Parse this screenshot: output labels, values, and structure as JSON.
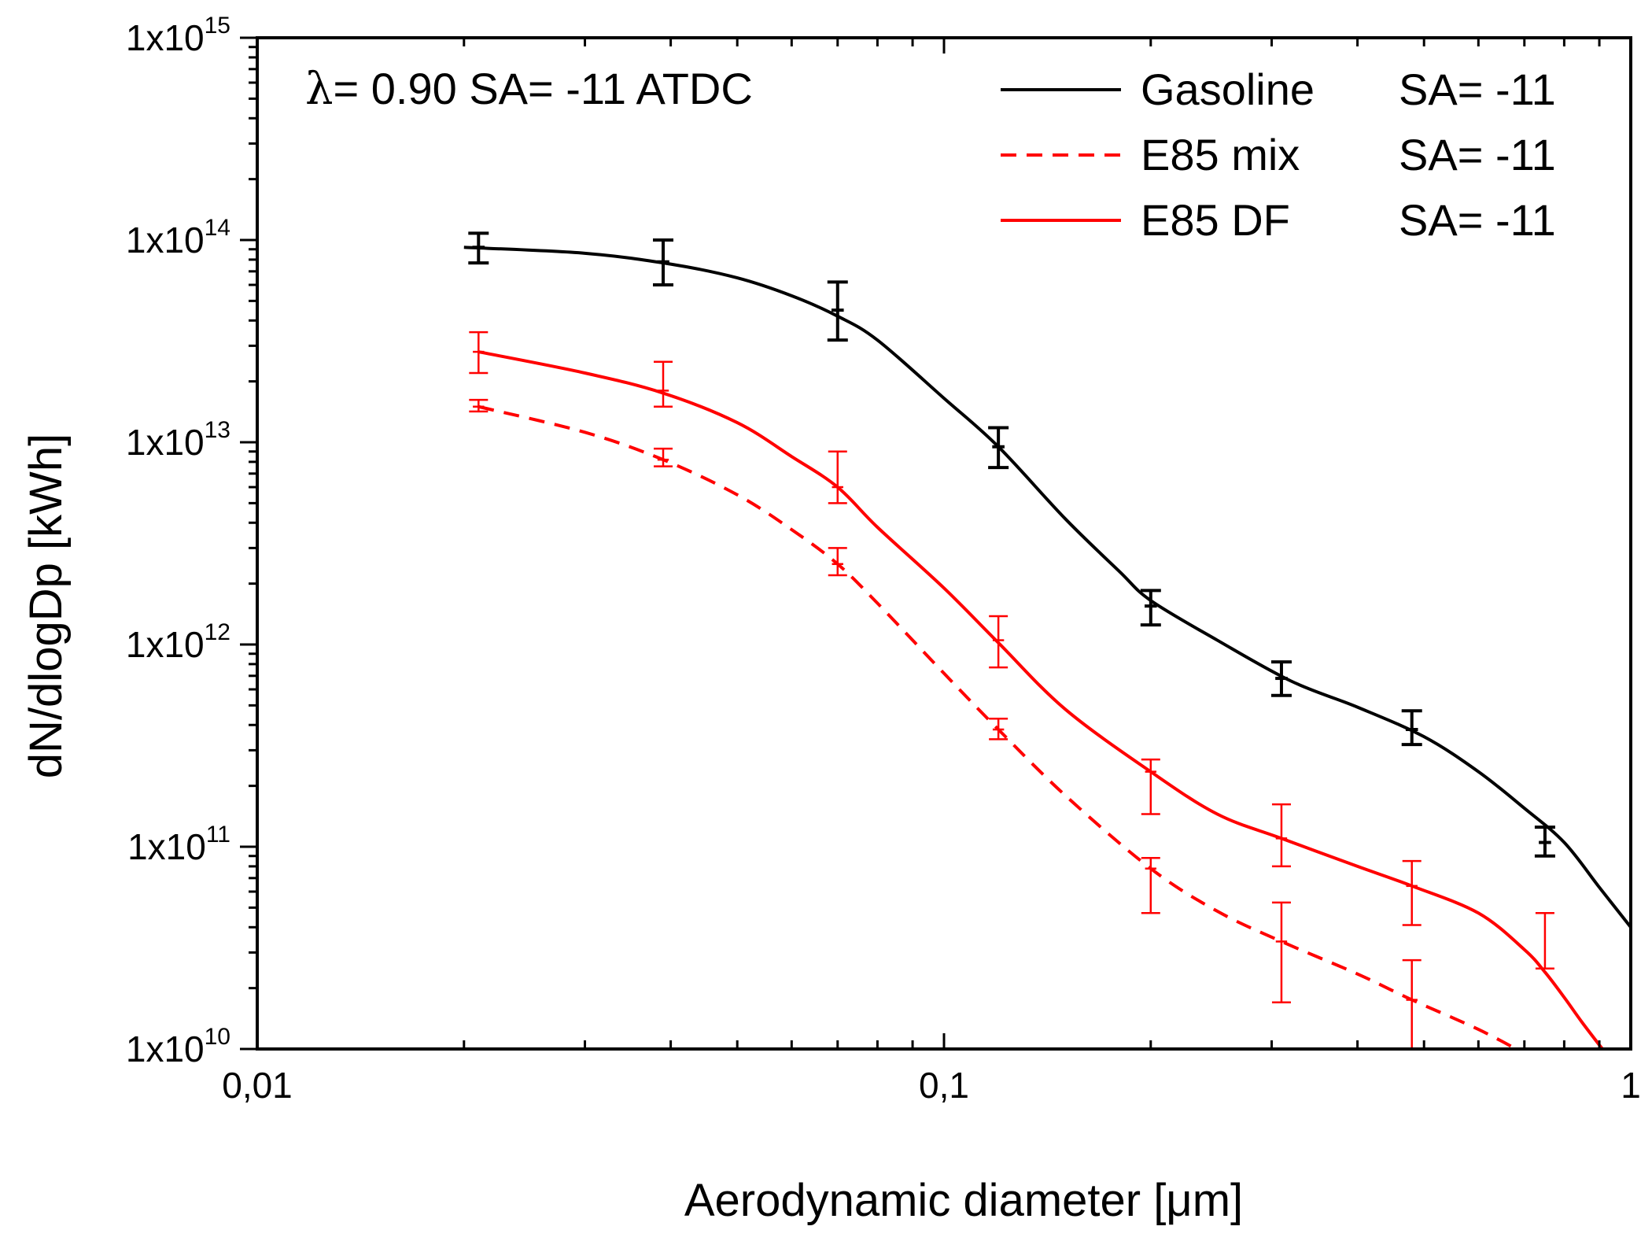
{
  "chart_data": {
    "type": "line",
    "title": "",
    "annotation": {
      "lambda_symbol": "λ",
      "text": "= 0.90 SA= -11 ATDC"
    },
    "xlabel": "Aerodynamic diameter [μm]",
    "ylabel": "dN/dlogDp [kWh]",
    "x_scale": "log",
    "y_scale": "log",
    "xlim": [
      0.01,
      1
    ],
    "ylim": [
      10000000000.0,
      1000000000000000.0
    ],
    "x_ticks": [
      {
        "value": 0.01,
        "label": "0,01"
      },
      {
        "value": 0.1,
        "label": "0,1"
      },
      {
        "value": 1,
        "label": "1"
      }
    ],
    "y_ticks": [
      {
        "value": 10000000000.0,
        "base": "1x10",
        "exp": "10"
      },
      {
        "value": 100000000000.0,
        "base": "1x10",
        "exp": "11"
      },
      {
        "value": 1000000000000.0,
        "base": "1x10",
        "exp": "12"
      },
      {
        "value": 10000000000000.0,
        "base": "1x10",
        "exp": "13"
      },
      {
        "value": 100000000000000.0,
        "base": "1x10",
        "exp": "14"
      },
      {
        "value": 1000000000000000.0,
        "base": "1x10",
        "exp": "15"
      }
    ],
    "legend_position": "top-right",
    "series": [
      {
        "name": "Gasoline",
        "legend_label": "Gasoline",
        "legend_sa": "SA= -11",
        "color": "#000000",
        "dash": "solid",
        "curve": {
          "x": [
            0.02,
            0.03,
            0.04,
            0.05,
            0.06,
            0.07,
            0.08,
            0.1,
            0.12,
            0.15,
            0.18,
            0.2,
            0.25,
            0.32,
            0.4,
            0.5,
            0.6,
            0.7,
            0.8,
            0.9,
            1.0
          ],
          "y": [
            92000000000000.0,
            86000000000000.0,
            76000000000000.0,
            65000000000000.0,
            53000000000000.0,
            42000000000000.0,
            32000000000000.0,
            16500000000000.0,
            9500000000000.0,
            4200000000000.0,
            2300000000000.0,
            1650000000000.0,
            1050000000000.0,
            660000000000.0,
            490000000000.0,
            350000000000.0,
            235000000000.0,
            155000000000.0,
            105000000000.0,
            63000000000.0,
            40000000000.0
          ]
        },
        "error_bars": [
          {
            "x": 0.021,
            "y": 92000000000000.0,
            "lo": 77000000000000.0,
            "hi": 108000000000000.0
          },
          {
            "x": 0.039,
            "y": 78000000000000.0,
            "lo": 60000000000000.0,
            "hi": 100000000000000.0
          },
          {
            "x": 0.07,
            "y": 45000000000000.0,
            "lo": 32000000000000.0,
            "hi": 62000000000000.0
          },
          {
            "x": 0.12,
            "y": 9500000000000.0,
            "lo": 7500000000000.0,
            "hi": 11800000000000.0
          },
          {
            "x": 0.2,
            "y": 1550000000000.0,
            "lo": 1250000000000.0,
            "hi": 1850000000000.0
          },
          {
            "x": 0.31,
            "y": 680000000000.0,
            "lo": 560000000000.0,
            "hi": 820000000000.0
          },
          {
            "x": 0.48,
            "y": 380000000000.0,
            "lo": 320000000000.0,
            "hi": 470000000000.0
          },
          {
            "x": 0.75,
            "y": 105000000000.0,
            "lo": 90000000000.0,
            "hi": 125000000000.0
          }
        ]
      },
      {
        "name": "E85 mix",
        "legend_label": "E85 mix",
        "legend_sa": "SA= -11",
        "color": "#ff0000",
        "dash": "dashed",
        "curve": {
          "x": [
            0.021,
            0.03,
            0.039,
            0.05,
            0.06,
            0.07,
            0.08,
            0.1,
            0.12,
            0.15,
            0.2,
            0.25,
            0.31,
            0.4,
            0.48,
            0.6,
            0.7
          ],
          "y": [
            15000000000000.0,
            11200000000000.0,
            8200000000000.0,
            5500000000000.0,
            3700000000000.0,
            2500000000000.0,
            1600000000000.0,
            720000000000.0,
            380000000000.0,
            180000000000.0,
            78000000000.0,
            48000000000.0,
            34000000000.0,
            23500000000.0,
            17500000000.0,
            12500000000.0,
            9500000000.0
          ]
        },
        "error_bars": [
          {
            "x": 0.021,
            "y": 15000000000000.0,
            "lo": 14200000000000.0,
            "hi": 16200000000000.0
          },
          {
            "x": 0.039,
            "y": 8200000000000.0,
            "lo": 7600000000000.0,
            "hi": 9300000000000.0
          },
          {
            "x": 0.07,
            "y": 2500000000000.0,
            "lo": 2200000000000.0,
            "hi": 3000000000000.0
          },
          {
            "x": 0.12,
            "y": 380000000000.0,
            "lo": 340000000000.0,
            "hi": 430000000000.0
          },
          {
            "x": 0.2,
            "y": 78000000000.0,
            "lo": 47000000000.0,
            "hi": 88000000000.0
          },
          {
            "x": 0.31,
            "y": 34000000000.0,
            "lo": 17000000000.0,
            "hi": 53000000000.0
          },
          {
            "x": 0.48,
            "y": 17500000000.0,
            "lo": 10000000000.0,
            "hi": 27500000000.0
          }
        ]
      },
      {
        "name": "E85 DF",
        "legend_label": "E85 DF",
        "legend_sa": "SA= -11",
        "color": "#ff0000",
        "dash": "solid",
        "curve": {
          "x": [
            0.021,
            0.03,
            0.039,
            0.05,
            0.06,
            0.07,
            0.08,
            0.1,
            0.12,
            0.15,
            0.2,
            0.25,
            0.31,
            0.4,
            0.48,
            0.6,
            0.7,
            0.75,
            0.8,
            0.85,
            0.92
          ],
          "y": [
            28000000000000.0,
            22000000000000.0,
            17500000000000.0,
            12500000000000.0,
            8500000000000.0,
            6000000000000.0,
            3800000000000.0,
            1900000000000.0,
            1020000000000.0,
            480000000000.0,
            235000000000.0,
            145000000000.0,
            110000000000.0,
            80000000000.0,
            64000000000.0,
            47000000000.0,
            31000000000.0,
            24000000000.0,
            18000000000.0,
            13500000000.0,
            9500000000.0
          ]
        },
        "error_bars": [
          {
            "x": 0.021,
            "y": 28000000000000.0,
            "lo": 22000000000000.0,
            "hi": 35000000000000.0
          },
          {
            "x": 0.039,
            "y": 18000000000000.0,
            "lo": 15000000000000.0,
            "hi": 25000000000000.0
          },
          {
            "x": 0.07,
            "y": 6000000000000.0,
            "lo": 5000000000000.0,
            "hi": 9000000000000.0
          },
          {
            "x": 0.12,
            "y": 1050000000000.0,
            "lo": 770000000000.0,
            "hi": 1380000000000.0
          },
          {
            "x": 0.2,
            "y": 235000000000.0,
            "lo": 145000000000.0,
            "hi": 270000000000.0
          },
          {
            "x": 0.31,
            "y": 110000000000.0,
            "lo": 80000000000.0,
            "hi": 162000000000.0
          },
          {
            "x": 0.48,
            "y": 64000000000.0,
            "lo": 41000000000.0,
            "hi": 85000000000.0
          },
          {
            "x": 0.75,
            "y": 25000000000.0,
            "lo": 25000000000.0,
            "hi": 47000000000.0
          }
        ]
      }
    ]
  }
}
